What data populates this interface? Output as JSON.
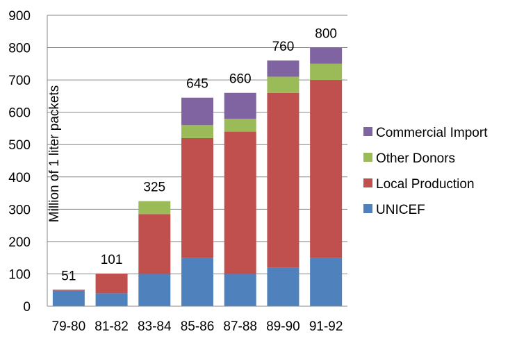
{
  "chart_data": {
    "type": "bar",
    "stacked": true,
    "ylabel": "Million of 1 liter packets",
    "ylim": [
      0,
      900
    ],
    "ytick_step": 100,
    "grid": true,
    "legend_position": "right",
    "categories": [
      "79-80",
      "81-82",
      "83-84",
      "85-86",
      "87-88",
      "89-90",
      "91-92"
    ],
    "totals": [
      "51",
      "101",
      "325",
      "645",
      "660",
      "760",
      "800"
    ],
    "series": [
      {
        "name": "UNICEF",
        "color": "#4F81BD",
        "values": [
          48,
          40,
          100,
          150,
          100,
          120,
          150
        ]
      },
      {
        "name": "Local Production",
        "color": "#C0504D",
        "values": [
          3,
          61,
          185,
          370,
          440,
          540,
          550
        ]
      },
      {
        "name": "Other Donors",
        "color": "#9BBB59",
        "values": [
          0,
          0,
          40,
          40,
          40,
          50,
          50
        ]
      },
      {
        "name": "Commercial Import",
        "color": "#8064A2",
        "values": [
          0,
          0,
          0,
          85,
          80,
          50,
          50
        ]
      }
    ]
  }
}
